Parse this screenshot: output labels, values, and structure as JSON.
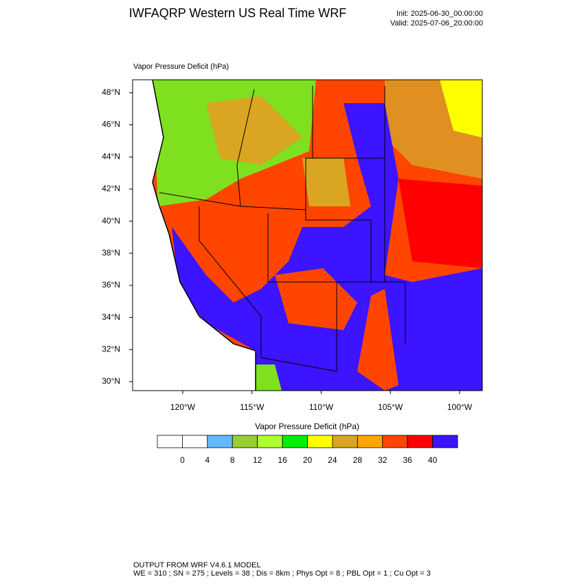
{
  "header": {
    "title": "IWFAQRP Western US Real Time WRF",
    "init": "Init: 2025-06-30_00:00:00",
    "valid": "Valid: 2025-07-06_20:00:00"
  },
  "map": {
    "title": "Vapor Pressure Deficit   (hPa)",
    "xlim": [
      -123.62,
      -98.36
    ],
    "ylim": [
      29.44,
      48.81
    ],
    "xticks": [
      {
        "value": -120,
        "label": "120°W"
      },
      {
        "value": -115,
        "label": "115°W"
      },
      {
        "value": -110,
        "label": "110°W"
      },
      {
        "value": -105,
        "label": "105°W"
      },
      {
        "value": -100,
        "label": "100°W"
      }
    ],
    "yticks": [
      {
        "value": 30,
        "label": "30°N"
      },
      {
        "value": 32,
        "label": "32°N"
      },
      {
        "value": 34,
        "label": "34°N"
      },
      {
        "value": 36,
        "label": "36°N"
      },
      {
        "value": 38,
        "label": "38°N"
      },
      {
        "value": 40,
        "label": "40°N"
      },
      {
        "value": 42,
        "label": "42°N"
      },
      {
        "value": 44,
        "label": "44°N"
      },
      {
        "value": 46,
        "label": "46°N"
      },
      {
        "value": 48,
        "label": "48°N"
      }
    ]
  },
  "colorbar": {
    "title": "Vapor Pressure Deficit  (hPa)",
    "levels": [
      0,
      4,
      8,
      12,
      16,
      20,
      24,
      28,
      32,
      36,
      40
    ],
    "colors": [
      "#ffffff",
      "#ffffff",
      "#63b8ff",
      "#9acd32",
      "#adff2f",
      "#00ee00",
      "#ffff00",
      "#daa520",
      "#ffa500",
      "#ff4500",
      "#ff0000",
      "#3c14ff"
    ]
  },
  "footer": {
    "line1": "OUTPUT FROM WRF V4.6.1 MODEL",
    "line2": "WE = 310 ; SN = 275 ; Levels = 38 ; Dis = 8km ; Phys Opt = 8 ; PBL Opt = 1 ; Cu Opt = 3"
  }
}
